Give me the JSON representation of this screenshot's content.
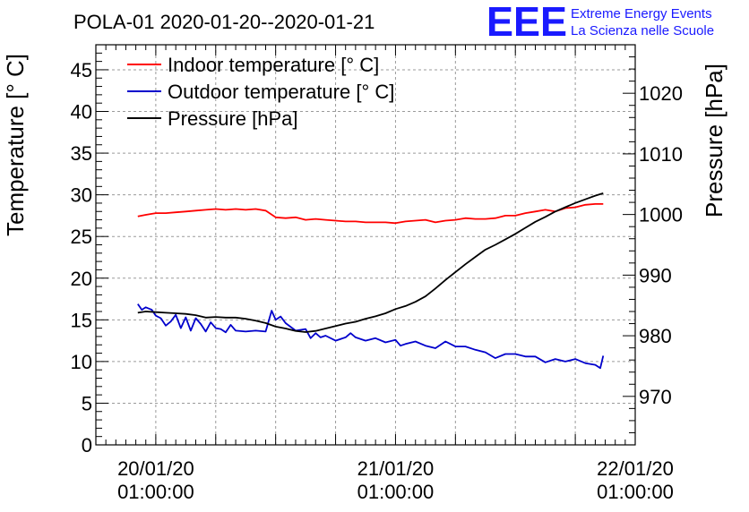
{
  "chart_data": {
    "type": "line",
    "title": "POLA-01 2020-01-20--2020-01-21",
    "ylabel_left": "Temperature [° C]",
    "ylabel_right": "Pressure [hPa]",
    "xlabel": "",
    "x_ticks": [
      {
        "date": "20/01/20",
        "time": "01:00:00",
        "hours": 0
      },
      {
        "date": "21/01/20",
        "time": "01:00:00",
        "hours": 24
      },
      {
        "date": "22/01/20",
        "time": "01:00:00",
        "hours": 48
      }
    ],
    "xlim_hours": [
      -6,
      48
    ],
    "ylim_left": [
      0,
      48
    ],
    "ylim_right": [
      962,
      1028
    ],
    "left_ticks": [
      0,
      5,
      10,
      15,
      20,
      25,
      30,
      35,
      40,
      45
    ],
    "right_ticks": [
      970,
      980,
      990,
      1000,
      1010,
      1020
    ],
    "grid": true,
    "legend_position": "top-left",
    "series": [
      {
        "name": "Indoor temperature [° C]",
        "color": "#ff0000",
        "axis": "left",
        "x": [
          -1.8,
          -1,
          0,
          1,
          2,
          3,
          4,
          5,
          6,
          7,
          8,
          9,
          10,
          11,
          12,
          13,
          14,
          15,
          16,
          17,
          18,
          19,
          20,
          21,
          22,
          23,
          24,
          25,
          26,
          27,
          28,
          29,
          30,
          31,
          32,
          33,
          34,
          35,
          36,
          37,
          38,
          39,
          40,
          41,
          42,
          43,
          44,
          44.8
        ],
        "y": [
          27.4,
          27.6,
          27.8,
          27.8,
          27.9,
          28.0,
          28.1,
          28.2,
          28.3,
          28.2,
          28.3,
          28.2,
          28.3,
          28.1,
          27.3,
          27.2,
          27.3,
          27.0,
          27.1,
          27.0,
          26.9,
          26.8,
          26.8,
          26.7,
          26.7,
          26.7,
          26.6,
          26.8,
          26.9,
          27.0,
          26.7,
          26.9,
          27.0,
          27.2,
          27.1,
          27.1,
          27.2,
          27.5,
          27.5,
          27.8,
          28.0,
          28.2,
          28.0,
          28.4,
          28.5,
          28.8,
          28.9,
          28.9
        ]
      },
      {
        "name": "Outdoor temperature [° C]",
        "color": "#0000cc",
        "axis": "left",
        "x": [
          -1.8,
          -1.4,
          -1,
          -0.4,
          0,
          0.5,
          1,
          1.5,
          2,
          2.5,
          3,
          3.5,
          4,
          4.5,
          5,
          5.5,
          6,
          6.5,
          7,
          7.5,
          8,
          9,
          10,
          11,
          11.6,
          12,
          12.5,
          13,
          14,
          15,
          15.5,
          16,
          16.5,
          17,
          18,
          19,
          19.5,
          20,
          21,
          22,
          23,
          24,
          24.5,
          25,
          26,
          27,
          28,
          29,
          30,
          31,
          32,
          33,
          34,
          35,
          36,
          37,
          38,
          39,
          40,
          41,
          42,
          43,
          44,
          44.5,
          44.8
        ],
        "y": [
          16.9,
          16.2,
          16.5,
          16.2,
          15.5,
          15.2,
          14.3,
          14.8,
          15.6,
          14.0,
          15.3,
          13.7,
          15.2,
          14.5,
          13.6,
          14.7,
          14.0,
          13.9,
          13.5,
          14.4,
          13.7,
          13.6,
          13.7,
          13.6,
          16.1,
          15.0,
          15.4,
          14.6,
          13.7,
          13.9,
          12.8,
          13.4,
          12.9,
          13.1,
          12.5,
          12.9,
          13.4,
          12.9,
          12.5,
          12.8,
          12.3,
          12.6,
          11.9,
          12.1,
          12.4,
          11.9,
          11.6,
          12.4,
          11.8,
          11.8,
          11.4,
          11.1,
          10.4,
          10.9,
          10.9,
          10.6,
          10.6,
          9.9,
          10.3,
          10.0,
          10.3,
          9.8,
          9.6,
          9.2,
          10.7
        ]
      },
      {
        "name": "Pressure [hPa]",
        "color": "#000000",
        "axis": "right",
        "x": [
          -1.8,
          -1,
          0,
          1,
          2,
          3,
          4,
          5,
          6,
          7,
          8,
          9,
          10,
          11,
          12,
          13,
          14,
          15,
          16,
          17,
          18,
          19,
          20,
          21,
          22,
          23,
          24,
          25,
          26,
          27,
          28,
          29,
          30,
          31,
          32,
          33,
          34,
          35,
          36,
          37,
          38,
          39,
          40,
          41,
          42,
          43,
          44,
          44.8
        ],
        "y": [
          983.8,
          984.0,
          983.9,
          983.8,
          983.7,
          983.6,
          983.4,
          983.0,
          983.1,
          983.0,
          983.0,
          982.8,
          982.5,
          982.1,
          981.5,
          981.2,
          980.8,
          980.6,
          980.8,
          981.2,
          981.6,
          982.0,
          982.3,
          982.8,
          983.2,
          983.7,
          984.4,
          984.9,
          985.6,
          986.5,
          987.8,
          989.2,
          990.5,
          991.8,
          993.0,
          994.2,
          995.0,
          995.9,
          996.8,
          997.8,
          998.8,
          999.6,
          1000.5,
          1001.2,
          1001.9,
          1002.5,
          1003.1,
          1003.5
        ]
      }
    ]
  },
  "logo": {
    "letters": "EEE",
    "line1": "Extreme Energy Events",
    "line2": "La Scienza nelle Scuole"
  }
}
